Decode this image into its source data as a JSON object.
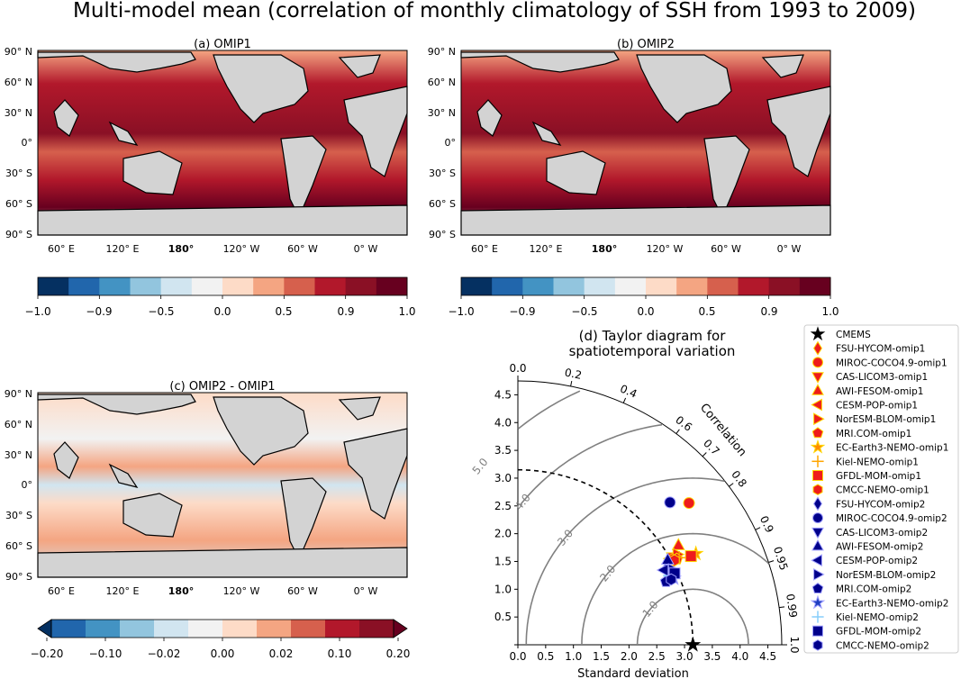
{
  "figure": {
    "suptitle": "Multi-model mean (correlation of monthly climatology of SSH from 1993 to 2009)"
  },
  "maps": {
    "lat_ticks": [
      "90° N",
      "60° N",
      "30° N",
      "0°",
      "30° S",
      "60° S",
      "90° S"
    ],
    "lon_ticks": [
      "60° E",
      "120° E",
      "180°",
      "120° W",
      "60° W",
      "0° W"
    ],
    "land_color": "#d3d3d3",
    "panels": [
      {
        "title": "(a) OMIP1",
        "colorbar": {
          "ticks": [
            "−1.0",
            "−0.9",
            "−0.5",
            "0.0",
            "0.5",
            "0.9",
            "1.0"
          ],
          "extend": false
        }
      },
      {
        "title": "(b) OMIP2",
        "colorbar": {
          "ticks": [
            "−1.0",
            "−0.9",
            "−0.5",
            "0.0",
            "0.5",
            "0.9",
            "1.0"
          ],
          "extend": false
        }
      },
      {
        "title": "(c) OMIP2 - OMIP1",
        "colorbar": {
          "ticks": [
            "−0.20",
            "−0.10",
            "−0.02",
            "0.00",
            "0.02",
            "0.10",
            "0.20"
          ],
          "extend": true
        }
      }
    ],
    "colormap": [
      "#053061",
      "#2166ac",
      "#4393c3",
      "#92c5de",
      "#d1e5f0",
      "#f2f2f2",
      "#fddbc7",
      "#f4a582",
      "#d6604d",
      "#b2182b",
      "#8a1025",
      "#67001f"
    ]
  },
  "chart_data": {
    "type": "taylor",
    "title": "(d) Taylor diagram for\nspatiotemporal variation",
    "xlabel": "Standard deviation",
    "sd_ticks": [
      "0.0",
      "0.5",
      "1.0",
      "1.5",
      "2.0",
      "2.5",
      "3.0",
      "3.5",
      "4.0",
      "4.5"
    ],
    "sd_max": 4.75,
    "correlation_label": "Correlation",
    "corr_ticks": [
      "0.0",
      "0.2",
      "0.4",
      "0.6",
      "0.7",
      "0.8",
      "0.9",
      "0.95",
      "0.99",
      "1.0"
    ],
    "rms_labels": [
      "1.0",
      "2.0",
      "3.0",
      "4.0",
      "5.0"
    ],
    "reference": {
      "name": "CMEMS",
      "sd": 3.15,
      "corr": 1.0
    },
    "series": [
      {
        "name": "CMEMS",
        "sd": 3.15,
        "corr": 1.0,
        "marker": "star",
        "color": "#000000"
      },
      {
        "name": "FSU-HYCOM-omip1",
        "sd": 3.1,
        "corr": 0.88,
        "marker": "diamond",
        "color": "#ee1c1c"
      },
      {
        "name": "MIROC-COCO4.9-omip1",
        "sd": 4.0,
        "corr": 0.77,
        "marker": "circle",
        "color": "#ee1c1c"
      },
      {
        "name": "CAS-LICOM3-omip1",
        "sd": 3.2,
        "corr": 0.87,
        "marker": "triangle-down",
        "color": "#ee1c1c"
      },
      {
        "name": "AWI-FESOM-omip1",
        "sd": 3.4,
        "corr": 0.85,
        "marker": "triangle-up",
        "color": "#ee1c1c"
      },
      {
        "name": "CESM-POP-omip1",
        "sd": 3.15,
        "corr": 0.87,
        "marker": "triangle-left",
        "color": "#ee1c1c"
      },
      {
        "name": "NorESM-BLOM-omip1",
        "sd": 3.3,
        "corr": 0.87,
        "marker": "triangle-right",
        "color": "#ee1c1c"
      },
      {
        "name": "MRI.COM-omip1",
        "sd": 3.25,
        "corr": 0.88,
        "marker": "pentagon",
        "color": "#ee1c1c"
      },
      {
        "name": "EC-Earth3-NEMO-omip1",
        "sd": 3.6,
        "corr": 0.89,
        "marker": "star",
        "color": "#ff8c00"
      },
      {
        "name": "Kiel-NEMO-omip1",
        "sd": 3.3,
        "corr": 0.88,
        "marker": "plus",
        "color": "#ffa500"
      },
      {
        "name": "GFDL-MOM-omip1",
        "sd": 3.5,
        "corr": 0.89,
        "marker": "square",
        "color": "#ee1c1c"
      },
      {
        "name": "CMCC-NEMO-omip1",
        "sd": 3.2,
        "corr": 0.88,
        "marker": "hexagon",
        "color": "#ee1c1c"
      },
      {
        "name": "FSU-HYCOM-omip2",
        "sd": 3.0,
        "corr": 0.89,
        "marker": "diamond",
        "color": "#00008b"
      },
      {
        "name": "MIROC-COCO4.9-omip2",
        "sd": 3.75,
        "corr": 0.73,
        "marker": "circle",
        "color": "#00008b"
      },
      {
        "name": "CAS-LICOM3-omip2",
        "sd": 3.05,
        "corr": 0.91,
        "marker": "triangle-down",
        "color": "#00008b"
      },
      {
        "name": "AWI-FESOM-omip2",
        "sd": 3.1,
        "corr": 0.87,
        "marker": "triangle-up",
        "color": "#00008b"
      },
      {
        "name": "CESM-POP-omip2",
        "sd": 2.95,
        "corr": 0.89,
        "marker": "triangle-left",
        "color": "#00008b"
      },
      {
        "name": "NorESM-BLOM-omip2",
        "sd": 3.1,
        "corr": 0.9,
        "marker": "triangle-right",
        "color": "#00008b"
      },
      {
        "name": "MRI.COM-omip2",
        "sd": 2.9,
        "corr": 0.92,
        "marker": "pentagon",
        "color": "#00008b"
      },
      {
        "name": "EC-Earth3-NEMO-omip2",
        "sd": 3.05,
        "corr": 0.92,
        "marker": "star",
        "color": "#1f3fbf"
      },
      {
        "name": "Kiel-NEMO-omip2",
        "sd": 3.0,
        "corr": 0.91,
        "marker": "plus",
        "color": "#87cefa"
      },
      {
        "name": "GFDL-MOM-omip2",
        "sd": 3.1,
        "corr": 0.91,
        "marker": "square",
        "color": "#00008b"
      },
      {
        "name": "CMCC-NEMO-omip2",
        "sd": 3.0,
        "corr": 0.92,
        "marker": "hexagon",
        "color": "#00008b"
      }
    ]
  }
}
